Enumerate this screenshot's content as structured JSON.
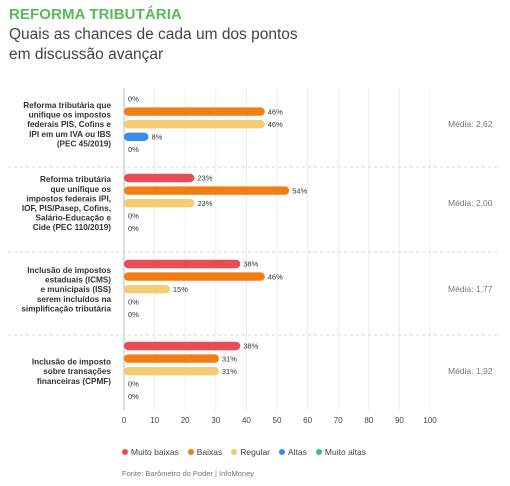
{
  "header": {
    "title": "REFORMA TRIBUTÁRIA",
    "subtitle": "Quais as chances de cada um dos pontos em discussão avançar"
  },
  "source": "Fonte: Barômetro do Poder | InfoMoney",
  "colors": {
    "muito_baixas": "#e84c54",
    "baixas": "#f07e12",
    "regular": "#f3cc73",
    "altas": "#3a8ee6",
    "muito_altas": "#40b89a",
    "title": "#58b85a"
  },
  "chart_data": {
    "type": "bar",
    "orientation": "horizontal",
    "title": "REFORMA TRIBUTÁRIA",
    "subtitle": "Quais as chances de cada um dos pontos em discussão avançar",
    "xlim": [
      0,
      100
    ],
    "x_ticks": [
      0,
      10,
      20,
      30,
      40,
      50,
      60,
      70,
      80,
      90,
      100
    ],
    "value_suffix": "%",
    "legend_position": "bottom",
    "grid": true,
    "series": [
      {
        "name": "Muito baixas",
        "color": "#e84c54"
      },
      {
        "name": "Baixas",
        "color": "#f07e12"
      },
      {
        "name": "Regular",
        "color": "#f3cc73"
      },
      {
        "name": "Altas",
        "color": "#3a8ee6"
      },
      {
        "name": "Muito altas",
        "color": "#40b89a"
      }
    ],
    "groups": [
      {
        "label_lines": [
          "Reforma tributária que",
          "unifique os impostos",
          "federais PIS, Cofins e",
          "IPI em um IVA ou IBS",
          "(PEC 45/2019)"
        ],
        "values": [
          0,
          46,
          46,
          8,
          0
        ],
        "media": "Média: 2,62"
      },
      {
        "label_lines": [
          "Reforma tributária",
          "que unifique os",
          "impostos federais IPI,",
          "IOF, PIS/Pasep, Cofins,",
          "Salário-Educação e",
          "Cide (PEC 110/2019)"
        ],
        "values": [
          23,
          54,
          23,
          0,
          0
        ],
        "media": "Média: 2,00"
      },
      {
        "label_lines": [
          "Inclusão de impostos",
          "estaduais (ICMS)",
          "e municipais (ISS)",
          "serem incluídos na",
          "simplificação tributária"
        ],
        "values": [
          38,
          46,
          15,
          0,
          0
        ],
        "media": "Média: 1,77"
      },
      {
        "label_lines": [
          "Inclusão de imposto",
          "sobre transações",
          "financeiras (CPMF)"
        ],
        "values": [
          38,
          31,
          31,
          0,
          0
        ],
        "media": "Média: 1,92"
      }
    ]
  }
}
